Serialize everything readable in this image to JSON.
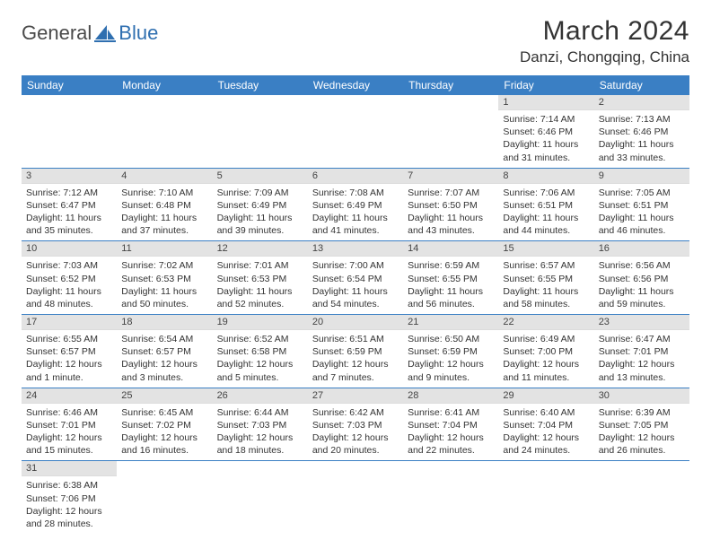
{
  "logo": {
    "word1": "General",
    "word2": "Blue",
    "mark_color": "#2f6fb0",
    "text1_color": "#4a4a4a"
  },
  "title": "March 2024",
  "location": "Danzi, Chongqing, China",
  "colors": {
    "header_bg": "#3a7fc4",
    "header_text": "#ffffff",
    "daynum_bg": "#e3e3e3",
    "row_border": "#3a7fc4",
    "body_text": "#333333",
    "page_bg": "#ffffff"
  },
  "fonts": {
    "title_size": 30,
    "location_size": 17,
    "dayhead_size": 12,
    "daynum_size": 11,
    "body_size": 10.5
  },
  "day_headers": [
    "Sunday",
    "Monday",
    "Tuesday",
    "Wednesday",
    "Thursday",
    "Friday",
    "Saturday"
  ],
  "weeks": [
    [
      null,
      null,
      null,
      null,
      null,
      {
        "n": "1",
        "sunrise": "Sunrise: 7:14 AM",
        "sunset": "Sunset: 6:46 PM",
        "day1": "Daylight: 11 hours",
        "day2": "and 31 minutes."
      },
      {
        "n": "2",
        "sunrise": "Sunrise: 7:13 AM",
        "sunset": "Sunset: 6:46 PM",
        "day1": "Daylight: 11 hours",
        "day2": "and 33 minutes."
      }
    ],
    [
      {
        "n": "3",
        "sunrise": "Sunrise: 7:12 AM",
        "sunset": "Sunset: 6:47 PM",
        "day1": "Daylight: 11 hours",
        "day2": "and 35 minutes."
      },
      {
        "n": "4",
        "sunrise": "Sunrise: 7:10 AM",
        "sunset": "Sunset: 6:48 PM",
        "day1": "Daylight: 11 hours",
        "day2": "and 37 minutes."
      },
      {
        "n": "5",
        "sunrise": "Sunrise: 7:09 AM",
        "sunset": "Sunset: 6:49 PM",
        "day1": "Daylight: 11 hours",
        "day2": "and 39 minutes."
      },
      {
        "n": "6",
        "sunrise": "Sunrise: 7:08 AM",
        "sunset": "Sunset: 6:49 PM",
        "day1": "Daylight: 11 hours",
        "day2": "and 41 minutes."
      },
      {
        "n": "7",
        "sunrise": "Sunrise: 7:07 AM",
        "sunset": "Sunset: 6:50 PM",
        "day1": "Daylight: 11 hours",
        "day2": "and 43 minutes."
      },
      {
        "n": "8",
        "sunrise": "Sunrise: 7:06 AM",
        "sunset": "Sunset: 6:51 PM",
        "day1": "Daylight: 11 hours",
        "day2": "and 44 minutes."
      },
      {
        "n": "9",
        "sunrise": "Sunrise: 7:05 AM",
        "sunset": "Sunset: 6:51 PM",
        "day1": "Daylight: 11 hours",
        "day2": "and 46 minutes."
      }
    ],
    [
      {
        "n": "10",
        "sunrise": "Sunrise: 7:03 AM",
        "sunset": "Sunset: 6:52 PM",
        "day1": "Daylight: 11 hours",
        "day2": "and 48 minutes."
      },
      {
        "n": "11",
        "sunrise": "Sunrise: 7:02 AM",
        "sunset": "Sunset: 6:53 PM",
        "day1": "Daylight: 11 hours",
        "day2": "and 50 minutes."
      },
      {
        "n": "12",
        "sunrise": "Sunrise: 7:01 AM",
        "sunset": "Sunset: 6:53 PM",
        "day1": "Daylight: 11 hours",
        "day2": "and 52 minutes."
      },
      {
        "n": "13",
        "sunrise": "Sunrise: 7:00 AM",
        "sunset": "Sunset: 6:54 PM",
        "day1": "Daylight: 11 hours",
        "day2": "and 54 minutes."
      },
      {
        "n": "14",
        "sunrise": "Sunrise: 6:59 AM",
        "sunset": "Sunset: 6:55 PM",
        "day1": "Daylight: 11 hours",
        "day2": "and 56 minutes."
      },
      {
        "n": "15",
        "sunrise": "Sunrise: 6:57 AM",
        "sunset": "Sunset: 6:55 PM",
        "day1": "Daylight: 11 hours",
        "day2": "and 58 minutes."
      },
      {
        "n": "16",
        "sunrise": "Sunrise: 6:56 AM",
        "sunset": "Sunset: 6:56 PM",
        "day1": "Daylight: 11 hours",
        "day2": "and 59 minutes."
      }
    ],
    [
      {
        "n": "17",
        "sunrise": "Sunrise: 6:55 AM",
        "sunset": "Sunset: 6:57 PM",
        "day1": "Daylight: 12 hours",
        "day2": "and 1 minute."
      },
      {
        "n": "18",
        "sunrise": "Sunrise: 6:54 AM",
        "sunset": "Sunset: 6:57 PM",
        "day1": "Daylight: 12 hours",
        "day2": "and 3 minutes."
      },
      {
        "n": "19",
        "sunrise": "Sunrise: 6:52 AM",
        "sunset": "Sunset: 6:58 PM",
        "day1": "Daylight: 12 hours",
        "day2": "and 5 minutes."
      },
      {
        "n": "20",
        "sunrise": "Sunrise: 6:51 AM",
        "sunset": "Sunset: 6:59 PM",
        "day1": "Daylight: 12 hours",
        "day2": "and 7 minutes."
      },
      {
        "n": "21",
        "sunrise": "Sunrise: 6:50 AM",
        "sunset": "Sunset: 6:59 PM",
        "day1": "Daylight: 12 hours",
        "day2": "and 9 minutes."
      },
      {
        "n": "22",
        "sunrise": "Sunrise: 6:49 AM",
        "sunset": "Sunset: 7:00 PM",
        "day1": "Daylight: 12 hours",
        "day2": "and 11 minutes."
      },
      {
        "n": "23",
        "sunrise": "Sunrise: 6:47 AM",
        "sunset": "Sunset: 7:01 PM",
        "day1": "Daylight: 12 hours",
        "day2": "and 13 minutes."
      }
    ],
    [
      {
        "n": "24",
        "sunrise": "Sunrise: 6:46 AM",
        "sunset": "Sunset: 7:01 PM",
        "day1": "Daylight: 12 hours",
        "day2": "and 15 minutes."
      },
      {
        "n": "25",
        "sunrise": "Sunrise: 6:45 AM",
        "sunset": "Sunset: 7:02 PM",
        "day1": "Daylight: 12 hours",
        "day2": "and 16 minutes."
      },
      {
        "n": "26",
        "sunrise": "Sunrise: 6:44 AM",
        "sunset": "Sunset: 7:03 PM",
        "day1": "Daylight: 12 hours",
        "day2": "and 18 minutes."
      },
      {
        "n": "27",
        "sunrise": "Sunrise: 6:42 AM",
        "sunset": "Sunset: 7:03 PM",
        "day1": "Daylight: 12 hours",
        "day2": "and 20 minutes."
      },
      {
        "n": "28",
        "sunrise": "Sunrise: 6:41 AM",
        "sunset": "Sunset: 7:04 PM",
        "day1": "Daylight: 12 hours",
        "day2": "and 22 minutes."
      },
      {
        "n": "29",
        "sunrise": "Sunrise: 6:40 AM",
        "sunset": "Sunset: 7:04 PM",
        "day1": "Daylight: 12 hours",
        "day2": "and 24 minutes."
      },
      {
        "n": "30",
        "sunrise": "Sunrise: 6:39 AM",
        "sunset": "Sunset: 7:05 PM",
        "day1": "Daylight: 12 hours",
        "day2": "and 26 minutes."
      }
    ],
    [
      {
        "n": "31",
        "sunrise": "Sunrise: 6:38 AM",
        "sunset": "Sunset: 7:06 PM",
        "day1": "Daylight: 12 hours",
        "day2": "and 28 minutes."
      },
      null,
      null,
      null,
      null,
      null,
      null
    ]
  ]
}
